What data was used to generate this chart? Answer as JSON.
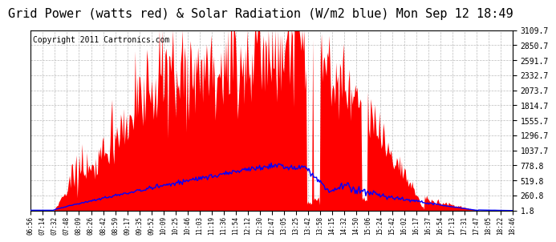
{
  "title": "Grid Power (watts red) & Solar Radiation (W/m2 blue) Mon Sep 12 18:49",
  "copyright_text": "Copyright 2011 Cartronics.com",
  "y_ticks": [
    1.8,
    260.8,
    519.8,
    778.8,
    1037.7,
    1296.7,
    1555.7,
    1814.7,
    2073.7,
    2332.7,
    2591.7,
    2850.7,
    3109.7
  ],
  "x_labels": [
    "06:56",
    "07:14",
    "07:32",
    "07:48",
    "08:09",
    "08:26",
    "08:42",
    "08:59",
    "09:17",
    "09:35",
    "09:52",
    "10:09",
    "10:25",
    "10:46",
    "11:03",
    "11:19",
    "11:36",
    "11:54",
    "12:12",
    "12:30",
    "12:47",
    "13:05",
    "13:25",
    "13:42",
    "13:58",
    "14:15",
    "14:32",
    "14:50",
    "15:06",
    "15:24",
    "15:42",
    "16:02",
    "16:17",
    "16:37",
    "16:54",
    "17:13",
    "17:31",
    "17:47",
    "18:05",
    "18:22",
    "18:46"
  ],
  "y_min": 1.8,
  "y_max": 3109.7,
  "grid_color": "#aaaaaa",
  "fill_color": "#ff0000",
  "line_color": "#0000ff",
  "bg_color": "#ffffff",
  "title_fontsize": 11,
  "copyright_fontsize": 7
}
